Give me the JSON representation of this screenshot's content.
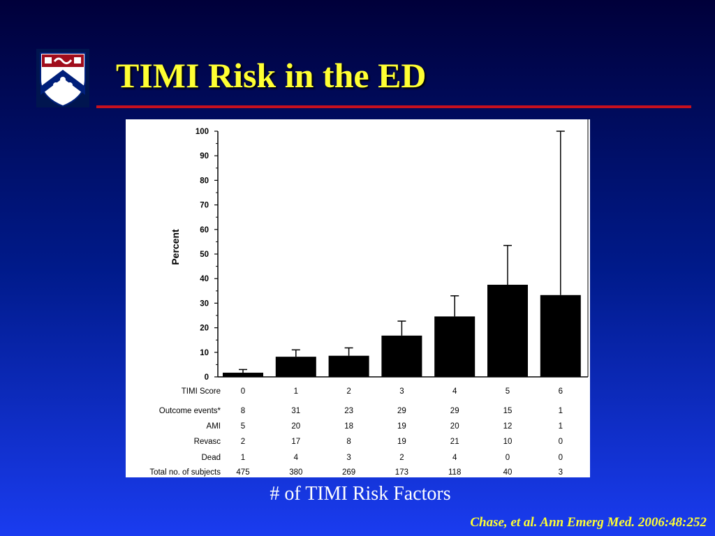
{
  "slide": {
    "title": "TIMI Risk in the ED",
    "subtitle": "# of TIMI Risk Factors",
    "citation": "Chase, et al. Ann Emerg Med. 2006:48:252"
  },
  "logo": {
    "icon": "penn-shield-icon",
    "colors": {
      "field": "#ffffff",
      "chief": "#a00d1c",
      "chevron": "#001f7a"
    }
  },
  "colors": {
    "accent_title": "#ffff33",
    "rule": "#c6101e",
    "bars": "#000000"
  },
  "chart_data": {
    "type": "bar",
    "ylabel": "Percent",
    "xlabel": "",
    "ylim": [
      0,
      100
    ],
    "yticks": [
      0,
      10,
      20,
      30,
      40,
      50,
      60,
      70,
      80,
      90,
      100
    ],
    "categories": [
      "0",
      "1",
      "2",
      "3",
      "4",
      "5",
      "6"
    ],
    "values": [
      1.7,
      8.2,
      8.6,
      16.8,
      24.6,
      37.5,
      33.3
    ],
    "error_upper": [
      3.0,
      11.0,
      11.8,
      22.7,
      33.0,
      53.5,
      100
    ],
    "table": {
      "header_label": "TIMI Score",
      "rows": [
        {
          "label": "Outcome events*",
          "values": [
            "8",
            "31",
            "23",
            "29",
            "29",
            "15",
            "1"
          ]
        },
        {
          "label": "AMI",
          "values": [
            "5",
            "20",
            "18",
            "19",
            "20",
            "12",
            "1"
          ]
        },
        {
          "label": "Revasc",
          "values": [
            "2",
            "17",
            "8",
            "19",
            "21",
            "10",
            "0"
          ]
        },
        {
          "label": "Dead",
          "values": [
            "1",
            "4",
            "3",
            "2",
            "4",
            "0",
            "0"
          ]
        },
        {
          "label": "Total no. of subjects",
          "values": [
            "475",
            "380",
            "269",
            "173",
            "118",
            "40",
            "3"
          ]
        }
      ]
    }
  }
}
